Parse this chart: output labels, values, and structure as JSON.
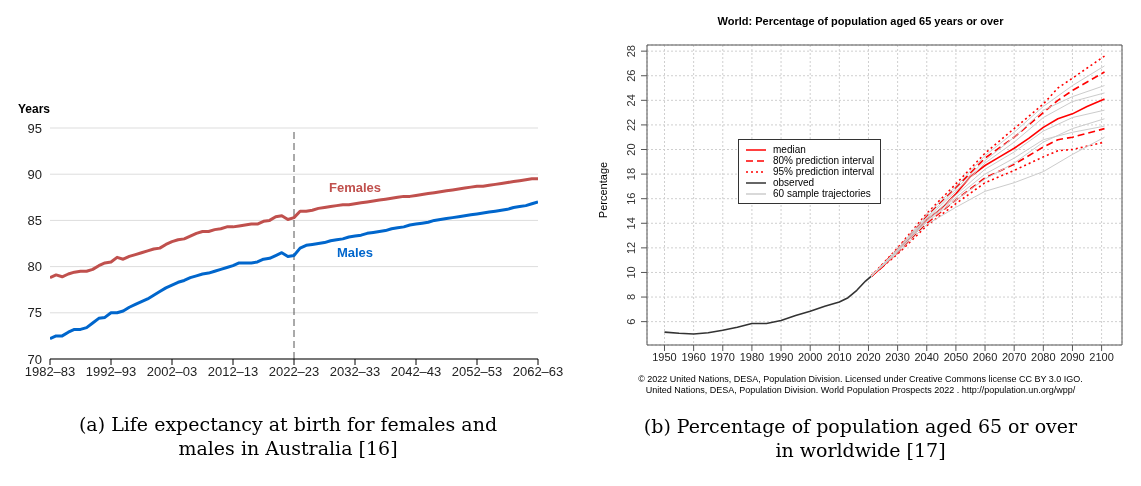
{
  "chart_data": [
    {
      "type": "line",
      "ylabel": "Years",
      "ylim": [
        70,
        95
      ],
      "categories": [
        "1982–83",
        null,
        null,
        null,
        null,
        null,
        null,
        null,
        null,
        null,
        "1992–93",
        null,
        null,
        null,
        null,
        null,
        null,
        null,
        null,
        null,
        "2002–03",
        null,
        null,
        null,
        null,
        null,
        null,
        null,
        null,
        null,
        "2012–13",
        null,
        null,
        null,
        null,
        null,
        null,
        null,
        null,
        null,
        "2022–23",
        null,
        null,
        null,
        null,
        null,
        null,
        null,
        null,
        null,
        "2032–33",
        null,
        null,
        null,
        null,
        null,
        null,
        null,
        null,
        null,
        "2042–43",
        null,
        null,
        null,
        null,
        null,
        null,
        null,
        null,
        null,
        "2052–53",
        null,
        null,
        null,
        null,
        null,
        null,
        null,
        null,
        null,
        "2062–63"
      ],
      "yticks": [
        70,
        75,
        80,
        85,
        90,
        95
      ],
      "grid": "y",
      "legend": false,
      "marker": "none",
      "series": [
        {
          "name": "Females",
          "color": "#c0504d",
          "values": [
            78.8,
            79.1,
            78.9,
            79.2,
            79.4,
            79.5,
            79.5,
            79.7,
            80.1,
            80.4,
            80.5,
            81.0,
            80.8,
            81.1,
            81.3,
            81.5,
            81.7,
            81.9,
            82.0,
            82.4,
            82.7,
            82.9,
            83.0,
            83.3,
            83.6,
            83.8,
            83.8,
            84.0,
            84.1,
            84.3,
            84.3,
            84.4,
            84.5,
            84.6,
            84.6,
            84.9,
            85.0,
            85.4,
            85.5,
            85.1,
            85.3,
            86.0,
            86.0,
            86.1,
            86.3,
            86.4,
            86.5,
            86.6,
            86.7,
            86.7,
            86.8,
            86.9,
            87.0,
            87.1,
            87.2,
            87.3,
            87.4,
            87.5,
            87.6,
            87.6,
            87.7,
            87.8,
            87.9,
            88.0,
            88.1,
            88.2,
            88.3,
            88.4,
            88.5,
            88.6,
            88.7,
            88.7,
            88.8,
            88.9,
            89.0,
            89.1,
            89.2,
            89.3,
            89.4,
            89.5,
            89.5
          ]
        },
        {
          "name": "Males",
          "color": "#0066cc",
          "values": [
            72.2,
            72.5,
            72.5,
            72.9,
            73.2,
            73.2,
            73.4,
            73.9,
            74.4,
            74.5,
            75.0,
            75.0,
            75.2,
            75.6,
            75.9,
            76.2,
            76.5,
            76.9,
            77.3,
            77.7,
            78.0,
            78.3,
            78.5,
            78.8,
            79.0,
            79.2,
            79.3,
            79.5,
            79.7,
            79.9,
            80.1,
            80.4,
            80.4,
            80.4,
            80.5,
            80.8,
            80.9,
            81.2,
            81.5,
            81.1,
            81.2,
            82.0,
            82.3,
            82.4,
            82.5,
            82.6,
            82.8,
            82.9,
            83.0,
            83.2,
            83.3,
            83.4,
            83.6,
            83.7,
            83.8,
            83.9,
            84.1,
            84.2,
            84.3,
            84.5,
            84.6,
            84.7,
            84.8,
            85.0,
            85.1,
            85.2,
            85.3,
            85.4,
            85.5,
            85.6,
            85.7,
            85.8,
            85.9,
            86.0,
            86.1,
            86.2,
            86.4,
            86.5,
            86.6,
            86.8,
            87.0
          ]
        }
      ],
      "ref_lines": [
        {
          "axis": "x",
          "value": "2022–23",
          "color": "#555555",
          "line_style": "dashed"
        }
      ],
      "annotations": [
        "(a) Life expectancy at birth for females and males in Australia [16]"
      ]
    },
    {
      "type": "line",
      "title": "World: Percentage of population aged 65 years or over",
      "ylabel": "Percentage",
      "xlim": [
        1944,
        2107
      ],
      "ylim": [
        4.1,
        28.5
      ],
      "xticks": [
        1950,
        1960,
        1970,
        1980,
        1990,
        2000,
        2010,
        2020,
        2030,
        2040,
        2050,
        2060,
        2070,
        2080,
        2090,
        2100
      ],
      "yticks": [
        6,
        8,
        10,
        12,
        14,
        16,
        18,
        20,
        22,
        24,
        26,
        28
      ],
      "grid": true,
      "legend": "left",
      "marker": "none",
      "series": [
        {
          "name": "median",
          "color": "#ff0000",
          "line_style": "solid",
          "x": [
            2021,
            2025,
            2030,
            2035,
            2040,
            2045,
            2050,
            2055,
            2060,
            2065,
            2070,
            2075,
            2080,
            2085,
            2090,
            2095,
            2101
          ],
          "values": [
            9.7,
            10.5,
            11.8,
            13.0,
            14.3,
            15.2,
            16.4,
            17.8,
            18.7,
            19.4,
            20.1,
            20.9,
            21.8,
            22.5,
            22.9,
            23.5,
            24.1
          ]
        },
        {
          "name": "80% prediction interval",
          "color": "#ff0000",
          "line_style": "dashed",
          "x": [
            2021,
            2030,
            2040,
            2050,
            2060,
            2070,
            2080,
            2085,
            2090,
            2101
          ],
          "values": [
            9.7,
            11.9,
            14.6,
            16.9,
            19.3,
            21.0,
            23.0,
            24.0,
            24.8,
            26.3
          ]
        },
        {
          "color": "#ff0000",
          "line_style": "dashed",
          "x": [
            2021,
            2030,
            2040,
            2050,
            2060,
            2070,
            2080,
            2085,
            2090,
            2101
          ],
          "values": [
            9.7,
            11.6,
            14.0,
            15.9,
            17.7,
            18.8,
            20.2,
            20.8,
            21.0,
            21.7
          ]
        },
        {
          "name": "95% prediction interval",
          "color": "#ff0000",
          "line_style": "dotted",
          "x": [
            2021,
            2030,
            2040,
            2050,
            2060,
            2070,
            2080,
            2085,
            2090,
            2101
          ],
          "values": [
            9.7,
            12.0,
            14.8,
            17.2,
            19.7,
            21.7,
            23.7,
            25.0,
            25.8,
            27.6
          ]
        },
        {
          "color": "#ff0000",
          "line_style": "dotted",
          "x": [
            2021,
            2030,
            2040,
            2050,
            2060,
            2070,
            2080,
            2085,
            2090,
            2101
          ],
          "values": [
            9.7,
            11.5,
            13.8,
            15.6,
            17.3,
            18.3,
            19.4,
            19.9,
            20.0,
            20.6
          ]
        },
        {
          "name": "observed",
          "color": "#333333",
          "line_style": "solid",
          "x": [
            1950,
            1955,
            1960,
            1965,
            1970,
            1975,
            1980,
            1985,
            1990,
            1995,
            2000,
            2005,
            2010,
            2013,
            2016,
            2019,
            2021
          ],
          "values": [
            5.15,
            5.05,
            5.0,
            5.1,
            5.3,
            5.55,
            5.85,
            5.85,
            6.1,
            6.5,
            6.85,
            7.25,
            7.6,
            7.95,
            8.55,
            9.3,
            9.7
          ]
        },
        {
          "name": "60 sample trajectories",
          "color": "#cccccc",
          "x": [
            2021,
            2030,
            2040,
            2050,
            2060,
            2070,
            2080,
            2090,
            2101
          ],
          "values": [
            9.7,
            11.6,
            13.9,
            15.3,
            16.6,
            17.3,
            18.2,
            19.6,
            21.0
          ]
        },
        {
          "color": "#cccccc",
          "x": [
            2021,
            2030,
            2040,
            2050,
            2060,
            2070,
            2080,
            2090,
            2101
          ],
          "values": [
            9.7,
            11.7,
            14.1,
            15.9,
            17.6,
            18.9,
            20.6,
            21.7,
            22.5
          ]
        },
        {
          "color": "#cccccc",
          "x": [
            2021,
            2030,
            2040,
            2050,
            2060,
            2070,
            2080,
            2090,
            2101
          ],
          "values": [
            9.7,
            11.8,
            14.3,
            16.3,
            18.4,
            19.8,
            21.5,
            22.6,
            23.2
          ]
        },
        {
          "color": "#cccccc",
          "x": [
            2021,
            2030,
            2040,
            2050,
            2060,
            2070,
            2080,
            2090,
            2101
          ],
          "values": [
            9.7,
            11.8,
            14.4,
            16.6,
            18.9,
            20.6,
            22.6,
            23.9,
            24.6
          ]
        },
        {
          "color": "#cccccc",
          "x": [
            2021,
            2030,
            2040,
            2050,
            2060,
            2070,
            2080,
            2090,
            2101
          ],
          "values": [
            9.7,
            11.9,
            14.5,
            16.8,
            19.1,
            21.0,
            23.2,
            24.3,
            25.2
          ]
        },
        {
          "color": "#cccccc",
          "x": [
            2021,
            2030,
            2040,
            2050,
            2060,
            2070,
            2080,
            2090,
            2101
          ],
          "values": [
            9.7,
            11.9,
            14.7,
            17.0,
            19.5,
            21.4,
            23.5,
            25.2,
            26.8
          ]
        },
        {
          "color": "#cccccc",
          "x": [
            2021,
            2030,
            2040,
            2050,
            2060,
            2070,
            2080,
            2090,
            2101
          ],
          "values": [
            9.7,
            11.7,
            14.2,
            16.1,
            18.0,
            19.3,
            20.8,
            21.4,
            21.9
          ]
        }
      ],
      "annotations": [
        "© 2022 United Nations, DESA, Population Division. Licensed under Creative Commons license CC BY 3.0 IGO.",
        "United Nations, DESA, Population Division. World Population Prospects 2022 . http://population.un.org/wpp/",
        "(b) Percentage of population aged 65 or over in worldwide [17]"
      ]
    }
  ]
}
